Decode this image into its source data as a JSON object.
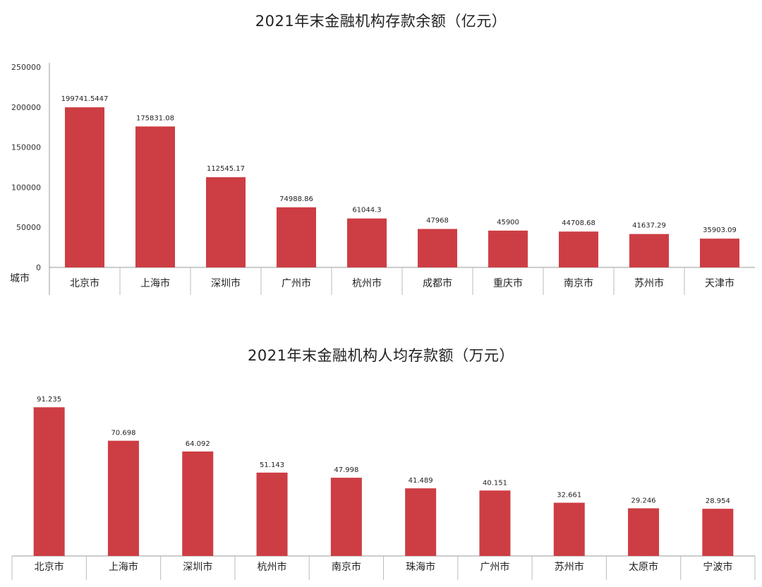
{
  "chart_data": [
    {
      "type": "bar",
      "title": "2021年末金融机构存款余额（亿元）",
      "xlabel": "城市",
      "ylabel": "",
      "ylim": [
        0,
        250000
      ],
      "yticks": [
        "250000",
        "200000",
        "150000",
        "100000",
        "50000",
        "0"
      ],
      "grid": false,
      "categories": [
        "北京市",
        "上海市",
        "深圳市",
        "广州市",
        "杭州市",
        "成都市",
        "重庆市",
        "南京市",
        "苏州市",
        "天津市"
      ],
      "values": [
        199741.5447,
        175831.08,
        112545.17,
        74988.86,
        61044.3,
        47968,
        45900,
        44708.68,
        41637.29,
        35903.09
      ],
      "value_labels": [
        "199741.5447",
        "175831.08",
        "112545.17",
        "74988.86",
        "61044.3",
        "47968",
        "45900",
        "44708.68",
        "41637.29",
        "35903.09"
      ],
      "bar_color": "#cd3e44"
    },
    {
      "type": "bar",
      "title": "2021年末金融机构人均存款额（万元）",
      "xlabel": "",
      "ylabel": "",
      "ylim": [
        0,
        100
      ],
      "grid": false,
      "categories": [
        "北京市",
        "上海市",
        "深圳市",
        "杭州市",
        "南京市",
        "珠海市",
        "广州市",
        "苏州市",
        "太原市",
        "宁波市"
      ],
      "values": [
        91.235,
        70.698,
        64.092,
        51.143,
        47.998,
        41.489,
        40.151,
        32.661,
        29.246,
        28.954
      ],
      "value_labels": [
        "91.235",
        "70.698",
        "64.092",
        "51.143",
        "47.998",
        "41.489",
        "40.151",
        "32.661",
        "29.246",
        "28.954"
      ],
      "bar_color": "#cd3e44"
    }
  ]
}
